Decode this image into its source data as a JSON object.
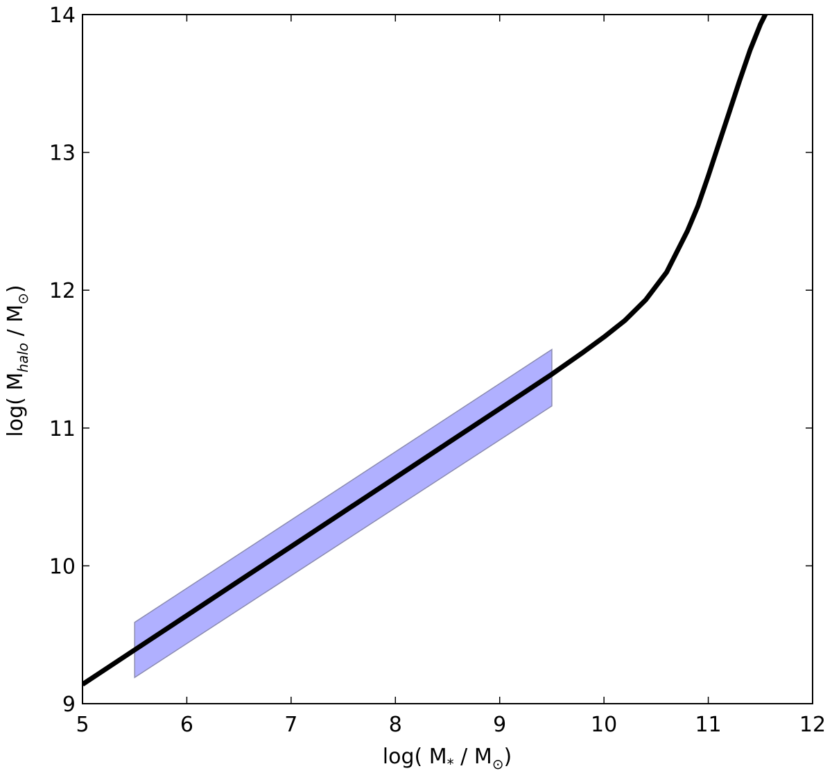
{
  "chart_data": {
    "type": "line",
    "xlabel": "log( M_* / M_⊙)",
    "ylabel": "log( M_halo / M_⊙)",
    "xlim": [
      5,
      12
    ],
    "ylim": [
      9,
      14
    ],
    "x_ticks": [
      5,
      6,
      7,
      8,
      9,
      10,
      11,
      12
    ],
    "y_ticks": [
      9,
      10,
      11,
      12,
      13,
      14
    ],
    "grid": false,
    "series": [
      {
        "type": "line",
        "color": "#000000",
        "x": [
          5.0,
          5.5,
          6.0,
          6.5,
          7.0,
          7.5,
          8.0,
          8.5,
          9.0,
          9.5,
          9.8,
          10.0,
          10.2,
          10.4,
          10.6,
          10.8,
          10.9,
          11.0,
          11.1,
          11.2,
          11.3,
          11.4,
          11.5,
          11.58
        ],
        "y": [
          9.14,
          9.39,
          9.64,
          9.89,
          10.14,
          10.39,
          10.64,
          10.89,
          11.14,
          11.39,
          11.55,
          11.66,
          11.78,
          11.93,
          12.13,
          12.43,
          12.61,
          12.83,
          13.06,
          13.29,
          13.52,
          13.74,
          13.93,
          14.05
        ]
      }
    ],
    "bands": [
      {
        "color": "#b0b0ff",
        "edge_color": "#8a8ab0",
        "x": [
          5.5,
          9.5
        ],
        "upper": [
          9.59,
          11.57
        ],
        "lower": [
          9.19,
          11.16
        ]
      }
    ]
  }
}
